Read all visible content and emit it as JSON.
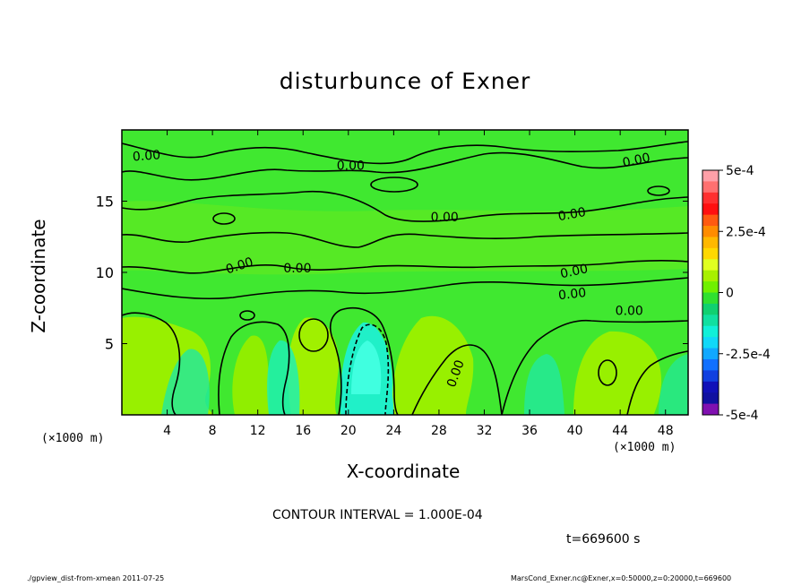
{
  "chart_data": {
    "type": "heatmap",
    "title": "disturbunce of Exner",
    "xlabel": "X-coordinate",
    "ylabel": "Z-coordinate",
    "x_unit_label": "(×1000 m)",
    "xlim": [
      0,
      50
    ],
    "ylim": [
      0,
      20
    ],
    "x_ticks": [
      4,
      8,
      12,
      16,
      20,
      24,
      28,
      32,
      36,
      40,
      44,
      48
    ],
    "y_ticks": [
      5,
      10,
      15
    ],
    "colorbar": {
      "range": [
        -0.0005,
        0.0005
      ],
      "tick_labels": [
        "5e-4",
        "2.5e-4",
        "0",
        "-2.5e-4",
        "-5e-4"
      ],
      "tick_values": [
        0.0005,
        0.00025,
        0,
        -0.00025,
        -0.0005
      ],
      "colors_top_to_bottom": [
        "#ffa0a8",
        "#ff7070",
        "#ff3030",
        "#ff1010",
        "#ff5a10",
        "#ff8c00",
        "#ffb800",
        "#ffd800",
        "#e0ff20",
        "#a8f000",
        "#70f000",
        "#30e030",
        "#10d070",
        "#10e0a0",
        "#10f0d8",
        "#10d8f8",
        "#10a8ff",
        "#1070ff",
        "#1040e0",
        "#1010b8",
        "#1010a0",
        "#8010b0"
      ]
    },
    "contour_labels": [
      "0.00",
      "0.00",
      "0.00",
      "0.00",
      "0.00",
      "0.00",
      "0.00",
      "0.00",
      "0.00",
      "0.00",
      "0.00",
      "0.00"
    ],
    "contour_interval_text": "CONTOUR INTERVAL = 1.000E-04",
    "time_text": "t=669600 s"
  },
  "footer": {
    "left": "./gpview_dist-from-xmean  2011-07-25",
    "right": "MarsCond_Exner.nc@Exner,x=0:50000,z=0:20000,t=669600"
  },
  "colors": {
    "field_base": "#40e830",
    "field_yellowgreen": "#98f000",
    "field_cyan": "#20f0c0",
    "field_light": "#40ffd0"
  }
}
